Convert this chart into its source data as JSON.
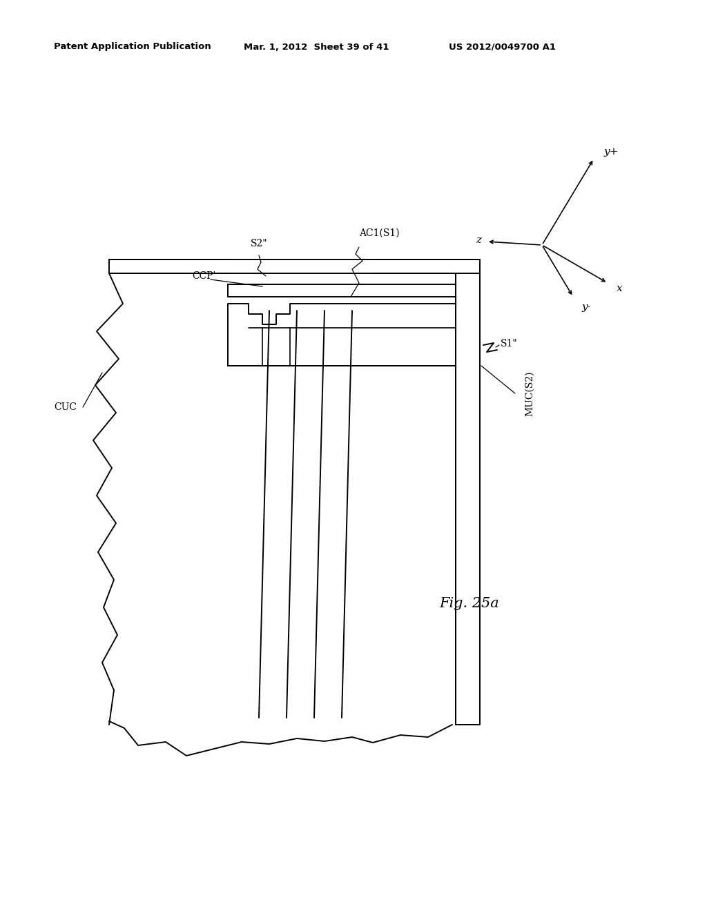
{
  "bg": "#ffffff",
  "lc": "#000000",
  "header_left": "Patent Application Publication",
  "header_mid": "Mar. 1, 2012  Sheet 39 of 41",
  "header_right": "US 2012/0049700 A1",
  "fig_label": "Fig. 25a"
}
